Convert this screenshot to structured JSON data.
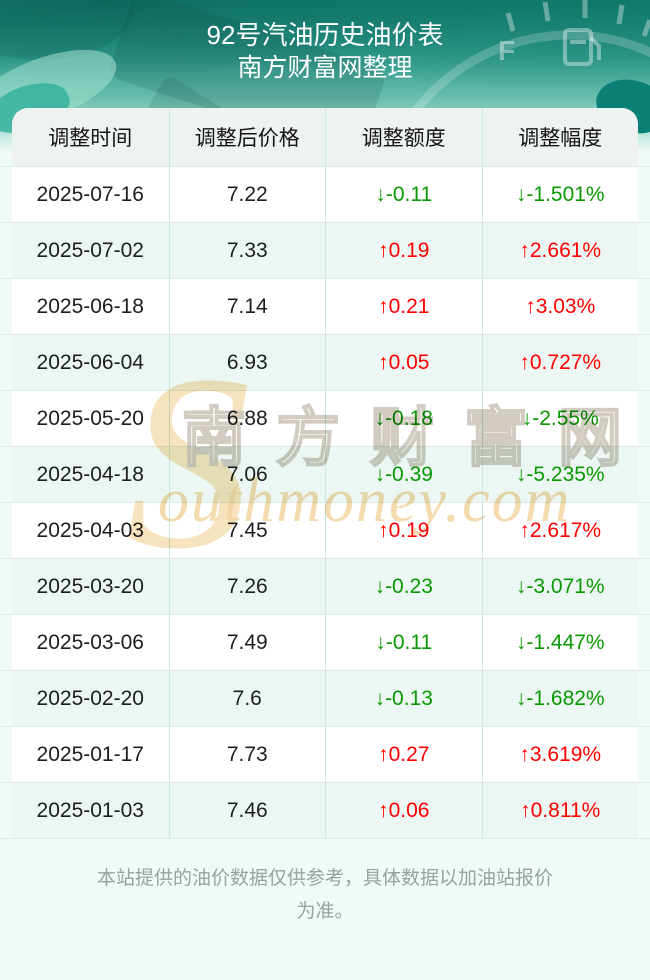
{
  "header": {
    "title": "92号汽油历史油价表",
    "subtitle": "南方财富网整理",
    "gauge_label": "F"
  },
  "table": {
    "columns": [
      "调整时间",
      "调整后价格",
      "调整额度",
      "调整幅度"
    ],
    "rows": [
      {
        "date": "2025-07-16",
        "price": "7.22",
        "change": "↓-0.11",
        "percent": "↓-1.501%",
        "direction": "down"
      },
      {
        "date": "2025-07-02",
        "price": "7.33",
        "change": "↑0.19",
        "percent": "↑2.661%",
        "direction": "up"
      },
      {
        "date": "2025-06-18",
        "price": "7.14",
        "change": "↑0.21",
        "percent": "↑3.03%",
        "direction": "up"
      },
      {
        "date": "2025-06-04",
        "price": "6.93",
        "change": "↑0.05",
        "percent": "↑0.727%",
        "direction": "up"
      },
      {
        "date": "2025-05-20",
        "price": "6.88",
        "change": "↓-0.18",
        "percent": "↓-2.55%",
        "direction": "down"
      },
      {
        "date": "2025-04-18",
        "price": "7.06",
        "change": "↓-0.39",
        "percent": "↓-5.235%",
        "direction": "down"
      },
      {
        "date": "2025-04-03",
        "price": "7.45",
        "change": "↑0.19",
        "percent": "↑2.617%",
        "direction": "up"
      },
      {
        "date": "2025-03-20",
        "price": "7.26",
        "change": "↓-0.23",
        "percent": "↓-3.071%",
        "direction": "down"
      },
      {
        "date": "2025-03-06",
        "price": "7.49",
        "change": "↓-0.11",
        "percent": "↓-1.447%",
        "direction": "down"
      },
      {
        "date": "2025-02-20",
        "price": "7.6",
        "change": "↓-0.13",
        "percent": "↓-1.682%",
        "direction": "down"
      },
      {
        "date": "2025-01-17",
        "price": "7.73",
        "change": "↑0.27",
        "percent": "↑3.619%",
        "direction": "up"
      },
      {
        "date": "2025-01-03",
        "price": "7.46",
        "change": "↑0.06",
        "percent": "↑0.811%",
        "direction": "up"
      }
    ]
  },
  "watermark": {
    "initial": "S",
    "cjk": "南方财富网",
    "latin": "outhmoney.com"
  },
  "footer": {
    "line1": "本站提供的油价数据仅供参考，具体数据以加油站报价",
    "line2": "为准。"
  },
  "colors": {
    "up": "#fe0000",
    "down": "#0a9800",
    "hero_teal": "#15857a",
    "row_tint": "#ecf7f4",
    "divider_vertical": "#c9e8e1",
    "divider_horizontal": "#dfe9e6",
    "page_background": "#f0faf8"
  }
}
